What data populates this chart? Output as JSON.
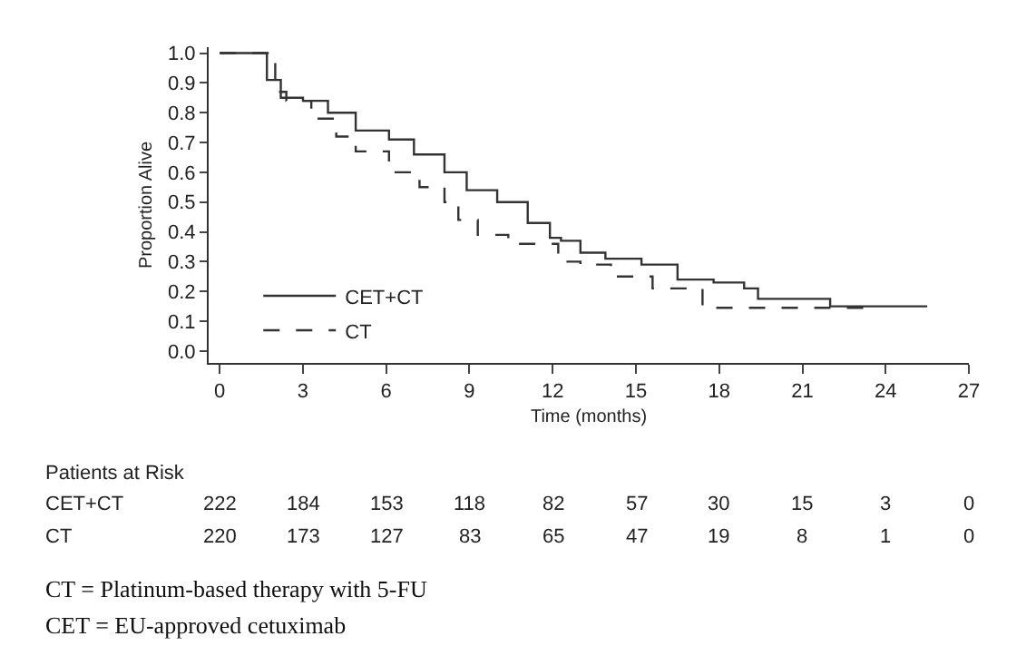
{
  "chart_data": {
    "type": "step",
    "xlabel": "Time (months)",
    "ylabel": "Proportion Alive",
    "series": [
      {
        "name": "CET+CT",
        "color": "#333333",
        "line_style": "solid",
        "x": [
          0,
          1.7,
          2.2,
          3,
          3.9,
          4.9,
          6.1,
          7,
          8.1,
          8.9,
          10,
          11.1,
          11.9,
          12.3,
          13,
          13.9,
          15.2,
          16.5,
          17.8,
          18.9,
          19.4,
          21.9,
          22.0,
          25.5
        ],
        "values": [
          1.0,
          0.91,
          0.85,
          0.84,
          0.8,
          0.74,
          0.71,
          0.66,
          0.6,
          0.54,
          0.5,
          0.43,
          0.38,
          0.37,
          0.33,
          0.31,
          0.29,
          0.24,
          0.23,
          0.21,
          0.175,
          0.175,
          0.15,
          0.15
        ]
      },
      {
        "name": "CT",
        "color": "#333333",
        "line_style": "dashed",
        "x": [
          0,
          2.0,
          2.4,
          3.3,
          4.2,
          4.9,
          6.1,
          7.2,
          8.1,
          8.6,
          9.3,
          10.4,
          12.2,
          13,
          14.1,
          15.6,
          17.4,
          23.6
        ],
        "values": [
          1.0,
          0.87,
          0.84,
          0.78,
          0.72,
          0.67,
          0.6,
          0.55,
          0.5,
          0.44,
          0.39,
          0.36,
          0.3,
          0.29,
          0.25,
          0.21,
          0.145,
          0.14
        ]
      }
    ],
    "xlim": [
      -0.4,
      27
    ],
    "xticks": [
      0,
      3,
      6,
      9,
      12,
      15,
      18,
      21,
      24,
      27
    ],
    "ylim": [
      -0.04,
      1.02
    ],
    "yticks": [
      {
        "value": 0,
        "label": "0.0"
      },
      0.1,
      0.2,
      0.3,
      0.4,
      0.5,
      0.6,
      0.7,
      0.8,
      0.9,
      {
        "value": 1,
        "label": "1.0"
      }
    ],
    "legend": "bottom left",
    "annotations": [
      "Patients at Risk",
      "CET+CT 222 184 153 118 82 57 30 15 3 0",
      "CT 220 173 127 83 65 47 19 8 1 0",
      "CT = Platinum-based therapy with 5-FU",
      "CET = EU-approved cetuximab"
    ]
  }
}
